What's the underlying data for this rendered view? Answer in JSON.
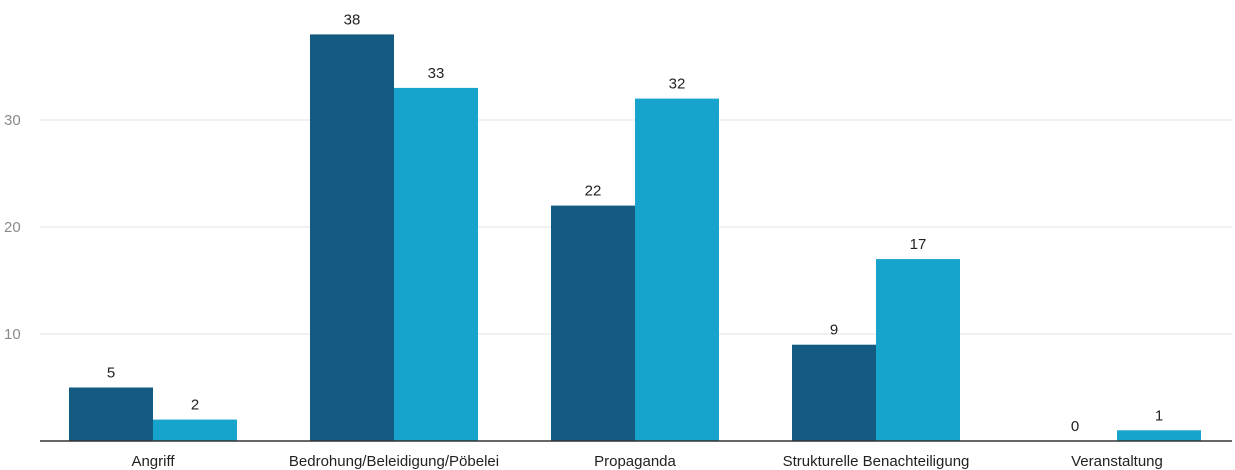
{
  "chart_data": {
    "type": "bar",
    "categories": [
      "Angriff",
      "Bedrohung/Beleidigung/Pöbelei",
      "Propaganda",
      "Strukturelle Benachteiligung",
      "Veranstaltung"
    ],
    "series": [
      {
        "values": [
          5,
          38,
          22,
          9,
          0
        ],
        "color": "#135b80"
      },
      {
        "values": [
          2,
          33,
          32,
          17,
          1
        ],
        "color": "#16a3cc"
      }
    ],
    "yticks": [
      10,
      20,
      30
    ],
    "ylim": [
      0,
      40
    ],
    "grid": true,
    "legend": "none",
    "title": "",
    "xlabel": "",
    "ylabel": ""
  }
}
